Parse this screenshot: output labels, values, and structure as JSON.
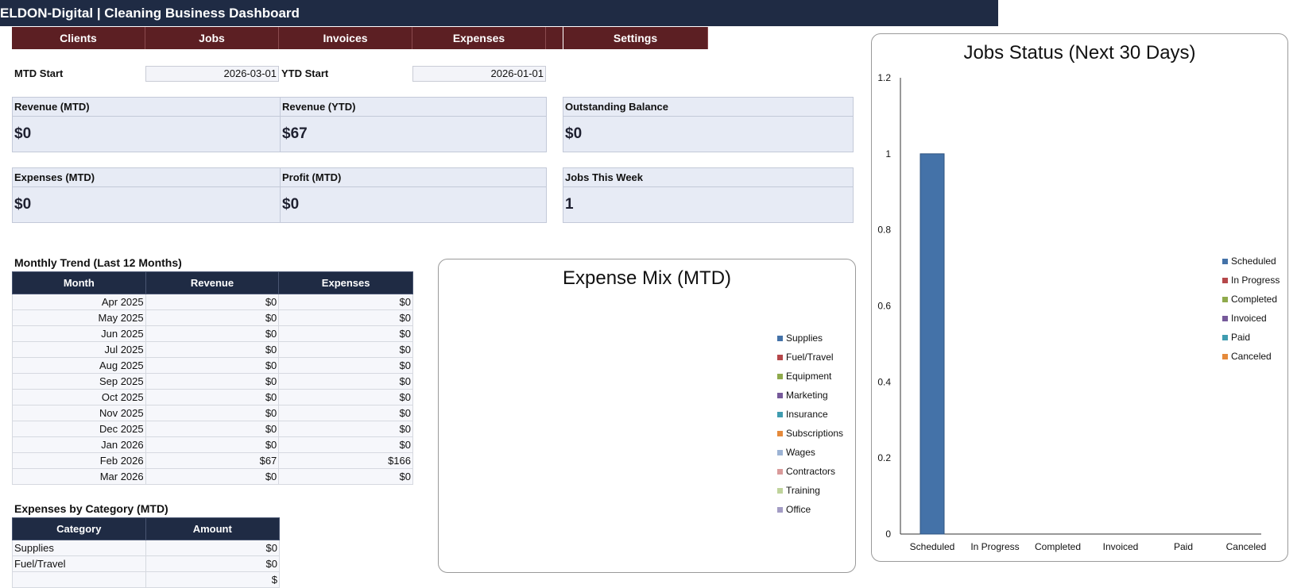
{
  "header": {
    "title": "ELDON-Digital | Cleaning Business Dashboard"
  },
  "nav": [
    "Clients",
    "Jobs",
    "Invoices",
    "Expenses",
    "Settings"
  ],
  "dates": {
    "mtd_label": "MTD Start",
    "mtd_value": "2026-03-01",
    "ytd_label": "YTD Start",
    "ytd_value": "2026-01-01"
  },
  "kpis": {
    "revenue_mtd": {
      "label": "Revenue (MTD)",
      "value": "$0"
    },
    "revenue_ytd": {
      "label": "Revenue (YTD)",
      "value": "$67"
    },
    "outstanding": {
      "label": "Outstanding Balance",
      "value": "$0"
    },
    "expenses_mtd": {
      "label": "Expenses (MTD)",
      "value": "$0"
    },
    "profit_mtd": {
      "label": "Profit (MTD)",
      "value": "$0"
    },
    "jobs_week": {
      "label": "Jobs This Week",
      "value": "1"
    }
  },
  "trend": {
    "title": "Monthly Trend (Last 12 Months)",
    "headers": [
      "Month",
      "Revenue",
      "Expenses"
    ],
    "rows": [
      [
        "Apr 2025",
        "$0",
        "$0"
      ],
      [
        "May 2025",
        "$0",
        "$0"
      ],
      [
        "Jun 2025",
        "$0",
        "$0"
      ],
      [
        "Jul 2025",
        "$0",
        "$0"
      ],
      [
        "Aug 2025",
        "$0",
        "$0"
      ],
      [
        "Sep 2025",
        "$0",
        "$0"
      ],
      [
        "Oct 2025",
        "$0",
        "$0"
      ],
      [
        "Nov 2025",
        "$0",
        "$0"
      ],
      [
        "Dec 2025",
        "$0",
        "$0"
      ],
      [
        "Jan 2026",
        "$0",
        "$0"
      ],
      [
        "Feb 2026",
        "$67",
        "$166"
      ],
      [
        "Mar 2026",
        "$0",
        "$0"
      ]
    ]
  },
  "expenses_by_category": {
    "title": "Expenses by Category (MTD)",
    "headers": [
      "Category",
      "Amount"
    ],
    "rows": [
      [
        "Supplies",
        "$0"
      ],
      [
        "Fuel/Travel",
        "$0"
      ],
      [
        "",
        "$"
      ]
    ]
  },
  "chart_data": [
    {
      "type": "pie",
      "title": "Expense Mix (MTD)",
      "categories": [
        "Supplies",
        "Fuel/Travel",
        "Equipment",
        "Marketing",
        "Insurance",
        "Subscriptions",
        "Wages",
        "Contractors",
        "Training",
        "Office"
      ],
      "values": [
        0,
        0,
        0,
        0,
        0,
        0,
        0,
        0,
        0,
        0
      ],
      "colors": [
        "#4472a8",
        "#b5474a",
        "#8faa4c",
        "#76599a",
        "#3f9cb0",
        "#e58a3b",
        "#9cb3d4",
        "#d99a9a",
        "#bfd39b",
        "#a39cc4"
      ],
      "legend": "right"
    },
    {
      "type": "bar",
      "title": "Jobs Status (Next 30 Days)",
      "categories": [
        "Scheduled",
        "In Progress",
        "Completed",
        "Invoiced",
        "Paid",
        "Canceled"
      ],
      "values": [
        1,
        0,
        0,
        0,
        0,
        0
      ],
      "colors": [
        "#4472a8",
        "#b5474a",
        "#8faa4c",
        "#76599a",
        "#3f9cb0",
        "#e58a3b"
      ],
      "yticks": [
        "0",
        "0.2",
        "0.4",
        "0.6",
        "0.8",
        "1",
        "1.2"
      ],
      "ylim": [
        0,
        1.2
      ],
      "grid": false,
      "legend": "right"
    }
  ]
}
